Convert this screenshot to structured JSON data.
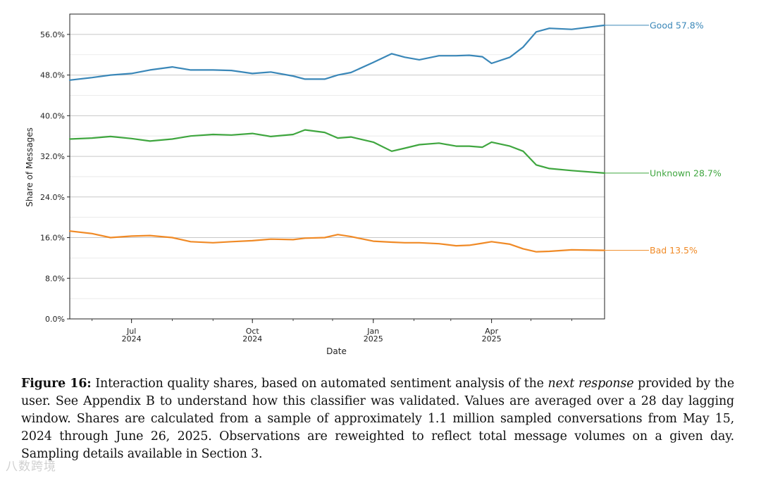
{
  "chart_data": {
    "type": "line",
    "xlabel": "Date",
    "ylabel": "Share of Messages",
    "ylim": [
      0,
      60
    ],
    "y_ticks": [
      "0.0%",
      "8.0%",
      "16.0%",
      "24.0%",
      "32.0%",
      "40.0%",
      "48.0%",
      "56.0%"
    ],
    "y_tick_values": [
      0,
      8,
      16,
      24,
      32,
      40,
      48,
      56
    ],
    "x_range": [
      "2024-05-15",
      "2025-06-26"
    ],
    "x_ticks": [
      {
        "month": "Jul",
        "year": "2024",
        "date": "2024-07-01"
      },
      {
        "month": "Oct",
        "year": "2024",
        "date": "2024-10-01"
      },
      {
        "month": "Jan",
        "year": "2025",
        "date": "2025-01-01"
      },
      {
        "month": "Apr",
        "year": "2025",
        "date": "2025-04-01"
      }
    ],
    "grid": true,
    "series": [
      {
        "name": "Good",
        "label": "Good  57.8%",
        "color": "#3a87b8",
        "x": [
          "2024-05-15",
          "2024-06-01",
          "2024-06-15",
          "2024-07-01",
          "2024-07-15",
          "2024-08-01",
          "2024-08-15",
          "2024-09-01",
          "2024-09-15",
          "2024-10-01",
          "2024-10-15",
          "2024-11-01",
          "2024-11-10",
          "2024-11-25",
          "2024-12-05",
          "2024-12-15",
          "2025-01-01",
          "2025-01-15",
          "2025-01-25",
          "2025-02-05",
          "2025-02-20",
          "2025-03-05",
          "2025-03-15",
          "2025-03-25",
          "2025-04-01",
          "2025-04-15",
          "2025-04-25",
          "2025-05-05",
          "2025-05-15",
          "2025-06-01",
          "2025-06-26"
        ],
        "values": [
          47.0,
          47.5,
          48.0,
          48.3,
          49.0,
          49.6,
          49.0,
          49.0,
          48.9,
          48.3,
          48.6,
          47.8,
          47.2,
          47.2,
          48.0,
          48.5,
          50.5,
          52.2,
          51.5,
          51.0,
          51.8,
          51.8,
          51.9,
          51.6,
          50.3,
          51.5,
          53.5,
          56.5,
          57.2,
          57.0,
          57.8
        ]
      },
      {
        "name": "Unknown",
        "label": "Unknown  28.7%",
        "color": "#3fa63f",
        "x": [
          "2024-05-15",
          "2024-06-01",
          "2024-06-15",
          "2024-07-01",
          "2024-07-15",
          "2024-08-01",
          "2024-08-15",
          "2024-09-01",
          "2024-09-15",
          "2024-10-01",
          "2024-10-15",
          "2024-11-01",
          "2024-11-10",
          "2024-11-25",
          "2024-12-05",
          "2024-12-15",
          "2025-01-01",
          "2025-01-15",
          "2025-01-25",
          "2025-02-05",
          "2025-02-20",
          "2025-03-05",
          "2025-03-15",
          "2025-03-25",
          "2025-04-01",
          "2025-04-15",
          "2025-04-25",
          "2025-05-05",
          "2025-05-15",
          "2025-06-01",
          "2025-06-26"
        ],
        "values": [
          35.4,
          35.6,
          35.9,
          35.5,
          35.0,
          35.4,
          36.0,
          36.3,
          36.2,
          36.5,
          35.9,
          36.3,
          37.2,
          36.7,
          35.6,
          35.8,
          34.8,
          33.0,
          33.6,
          34.3,
          34.6,
          34.0,
          34.0,
          33.8,
          34.8,
          34.0,
          33.0,
          30.3,
          29.6,
          29.2,
          28.7
        ]
      },
      {
        "name": "Bad",
        "label": "Bad  13.5%",
        "color": "#f08a26",
        "x": [
          "2024-05-15",
          "2024-06-01",
          "2024-06-15",
          "2024-07-01",
          "2024-07-15",
          "2024-08-01",
          "2024-08-15",
          "2024-09-01",
          "2024-09-15",
          "2024-10-01",
          "2024-10-15",
          "2024-11-01",
          "2024-11-10",
          "2024-11-25",
          "2024-12-05",
          "2024-12-15",
          "2025-01-01",
          "2025-01-15",
          "2025-01-25",
          "2025-02-05",
          "2025-02-20",
          "2025-03-05",
          "2025-03-15",
          "2025-03-25",
          "2025-04-01",
          "2025-04-15",
          "2025-04-25",
          "2025-05-05",
          "2025-05-15",
          "2025-06-01",
          "2025-06-26"
        ],
        "values": [
          17.3,
          16.8,
          16.0,
          16.3,
          16.4,
          16.0,
          15.2,
          15.0,
          15.2,
          15.4,
          15.7,
          15.6,
          15.9,
          16.0,
          16.6,
          16.2,
          15.3,
          15.1,
          15.0,
          15.0,
          14.8,
          14.4,
          14.5,
          14.9,
          15.2,
          14.7,
          13.8,
          13.2,
          13.3,
          13.6,
          13.5
        ]
      }
    ]
  },
  "caption": {
    "label": "Figure 16:",
    "text_before": " Interaction quality shares, based on automated sentiment analysis of the ",
    "emphasis": "next response",
    "text_after": " provided by the user. See Appendix B to understand how this classifier was validated. Values are averaged over a 28 day lagging window. Shares are calculated from a sample of approximately 1.1 million sampled conversations from May 15, 2024 through June 26, 2025. Observations are reweighted to reflect total message volumes on a given day. Sampling details available in Section 3."
  },
  "watermark": "八数跨境"
}
